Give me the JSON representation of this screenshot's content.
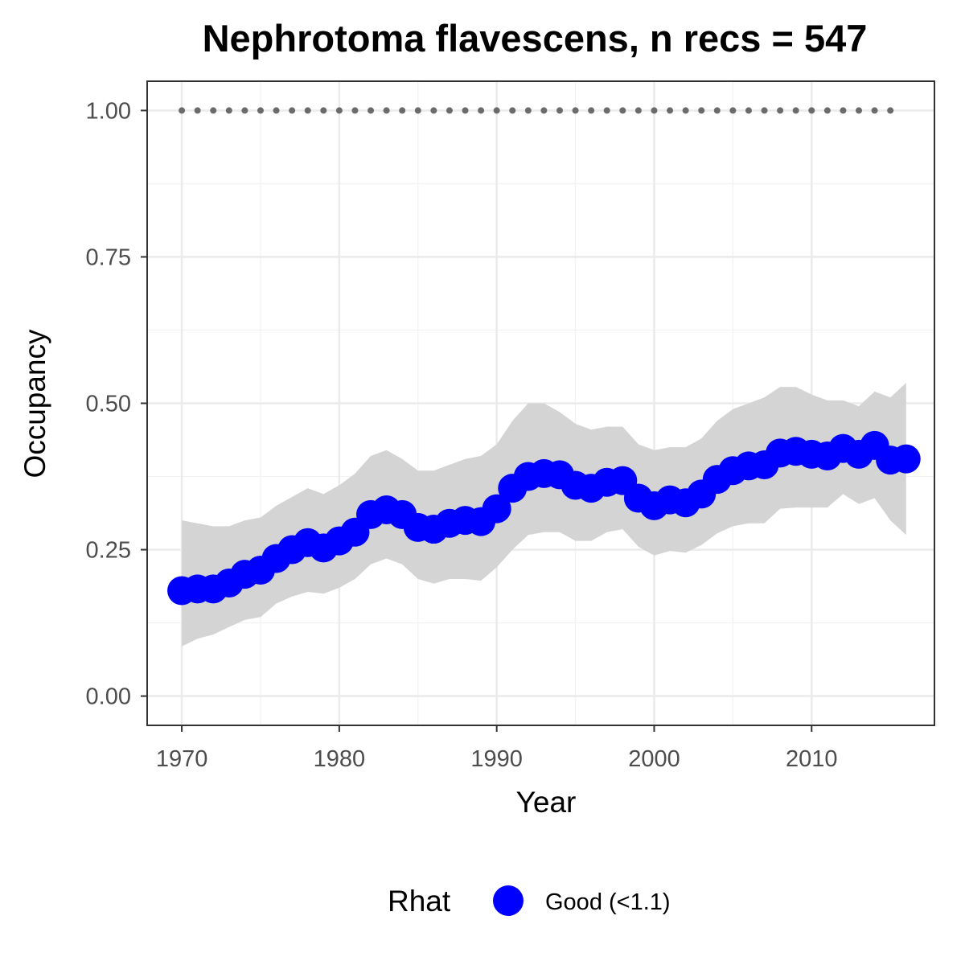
{
  "chart_data": {
    "type": "line",
    "title": "Nephrotoma flavescens, n recs = 547",
    "xlabel": "Year",
    "ylabel": "Occupancy",
    "xlim": [
      1967.8,
      2017.8
    ],
    "ylim": [
      -0.05,
      1.05
    ],
    "x_ticks": [
      1970,
      1980,
      1990,
      2000,
      2010
    ],
    "x_tick_labels": [
      "1970",
      "1980",
      "1990",
      "2000",
      "2010"
    ],
    "y_ticks": [
      0,
      0.25,
      0.5,
      0.75,
      1.0
    ],
    "y_tick_labels": [
      "0.00",
      "0.25",
      "0.50",
      "0.75",
      "1.00"
    ],
    "grid": true,
    "legend": {
      "position": "bottom",
      "title": "Rhat",
      "entries": [
        {
          "label": "Good (<1.1)",
          "color": "#0000ff"
        }
      ]
    },
    "series": [
      {
        "name": "Good (<1.1)",
        "color": "#0000ff",
        "x": [
          1970,
          1971,
          1972,
          1973,
          1974,
          1975,
          1976,
          1977,
          1978,
          1979,
          1980,
          1981,
          1982,
          1983,
          1984,
          1985,
          1986,
          1987,
          1988,
          1989,
          1990,
          1991,
          1992,
          1993,
          1994,
          1995,
          1996,
          1997,
          1998,
          1999,
          2000,
          2001,
          2002,
          2003,
          2004,
          2005,
          2006,
          2007,
          2008,
          2009,
          2010,
          2011,
          2012,
          2013,
          2014,
          2015,
          2016
        ],
        "y": [
          0.18,
          0.183,
          0.183,
          0.193,
          0.208,
          0.215,
          0.235,
          0.25,
          0.262,
          0.253,
          0.265,
          0.28,
          0.31,
          0.318,
          0.31,
          0.288,
          0.285,
          0.295,
          0.3,
          0.298,
          0.32,
          0.355,
          0.375,
          0.38,
          0.378,
          0.36,
          0.355,
          0.365,
          0.368,
          0.338,
          0.325,
          0.335,
          0.33,
          0.345,
          0.37,
          0.385,
          0.393,
          0.395,
          0.415,
          0.418,
          0.413,
          0.41,
          0.423,
          0.413,
          0.428,
          0.403,
          0.405
        ],
        "lower": [
          0.085,
          0.098,
          0.105,
          0.118,
          0.13,
          0.135,
          0.158,
          0.17,
          0.178,
          0.175,
          0.185,
          0.2,
          0.225,
          0.235,
          0.225,
          0.2,
          0.192,
          0.2,
          0.2,
          0.197,
          0.22,
          0.25,
          0.275,
          0.28,
          0.28,
          0.265,
          0.265,
          0.28,
          0.285,
          0.255,
          0.24,
          0.248,
          0.245,
          0.258,
          0.278,
          0.29,
          0.295,
          0.295,
          0.32,
          0.322,
          0.322,
          0.322,
          0.345,
          0.328,
          0.338,
          0.3,
          0.275
        ],
        "upper": [
          0.3,
          0.295,
          0.29,
          0.29,
          0.3,
          0.305,
          0.325,
          0.34,
          0.355,
          0.345,
          0.36,
          0.38,
          0.41,
          0.42,
          0.405,
          0.385,
          0.385,
          0.395,
          0.405,
          0.41,
          0.43,
          0.47,
          0.5,
          0.5,
          0.485,
          0.465,
          0.455,
          0.46,
          0.46,
          0.43,
          0.42,
          0.425,
          0.425,
          0.44,
          0.47,
          0.49,
          0.5,
          0.51,
          0.528,
          0.528,
          0.515,
          0.505,
          0.505,
          0.495,
          0.52,
          0.51,
          0.535
        ]
      }
    ],
    "reference_series": {
      "x": [
        1970,
        1971,
        1972,
        1973,
        1974,
        1975,
        1976,
        1977,
        1978,
        1979,
        1980,
        1981,
        1982,
        1983,
        1984,
        1985,
        1986,
        1987,
        1988,
        1989,
        1990,
        1991,
        1992,
        1993,
        1994,
        1995,
        1996,
        1997,
        1998,
        1999,
        2000,
        2001,
        2002,
        2003,
        2004,
        2005,
        2006,
        2007,
        2008,
        2009,
        2010,
        2011,
        2012,
        2013,
        2014,
        2015
      ],
      "y": 1.0,
      "color": "#6b6b6b"
    },
    "colors": {
      "ribbon": "#d4d4d4",
      "grid_major": "#ebebeb",
      "grid_minor": "#f2f2f2",
      "panel_border": "#333333",
      "tick_text": "#4d4d4d"
    }
  }
}
